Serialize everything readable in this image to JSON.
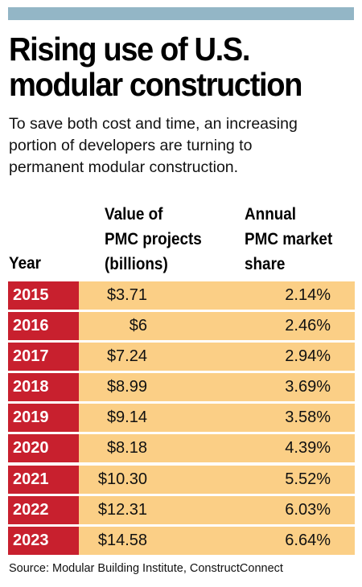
{
  "title_line1": "Rising use of U.S.",
  "title_line2": "modular construction",
  "subtitle_line1": "To save both cost and time, an increasing",
  "subtitle_line2": "portion of developers are turning to",
  "subtitle_line3": "permanent modular construction.",
  "headers": {
    "year": "Year",
    "value_l1": "Value of",
    "value_l2": "PMC projects",
    "value_l3": "(billions)",
    "share_l1": "Annual",
    "share_l2": "PMC market",
    "share_l3": "share"
  },
  "colors": {
    "top_bar": "#93b6c6",
    "year_cell": "#c8202e",
    "row_fill": "#fbcf86"
  },
  "chart_data": {
    "type": "table",
    "columns": [
      "Year",
      "Value of PMC projects (billions)",
      "Annual PMC market share"
    ],
    "rows": [
      {
        "year": "2015",
        "value": "$3.71",
        "share": "2.14%"
      },
      {
        "year": "2016",
        "value": "$6",
        "share": "2.46%"
      },
      {
        "year": "2017",
        "value": "$7.24",
        "share": "2.94%"
      },
      {
        "year": "2018",
        "value": "$8.99",
        "share": "3.69%"
      },
      {
        "year": "2019",
        "value": "$9.14",
        "share": "3.58%"
      },
      {
        "year": "2020",
        "value": "$8.18",
        "share": "4.39%"
      },
      {
        "year": "2021",
        "value": "$10.30",
        "share": "5.52%"
      },
      {
        "year": "2022",
        "value": "$12.31",
        "share": "6.03%"
      },
      {
        "year": "2023",
        "value": "$14.58",
        "share": "6.64%"
      }
    ]
  },
  "source": "Source: Modular Building Institute, ConstructConnect"
}
